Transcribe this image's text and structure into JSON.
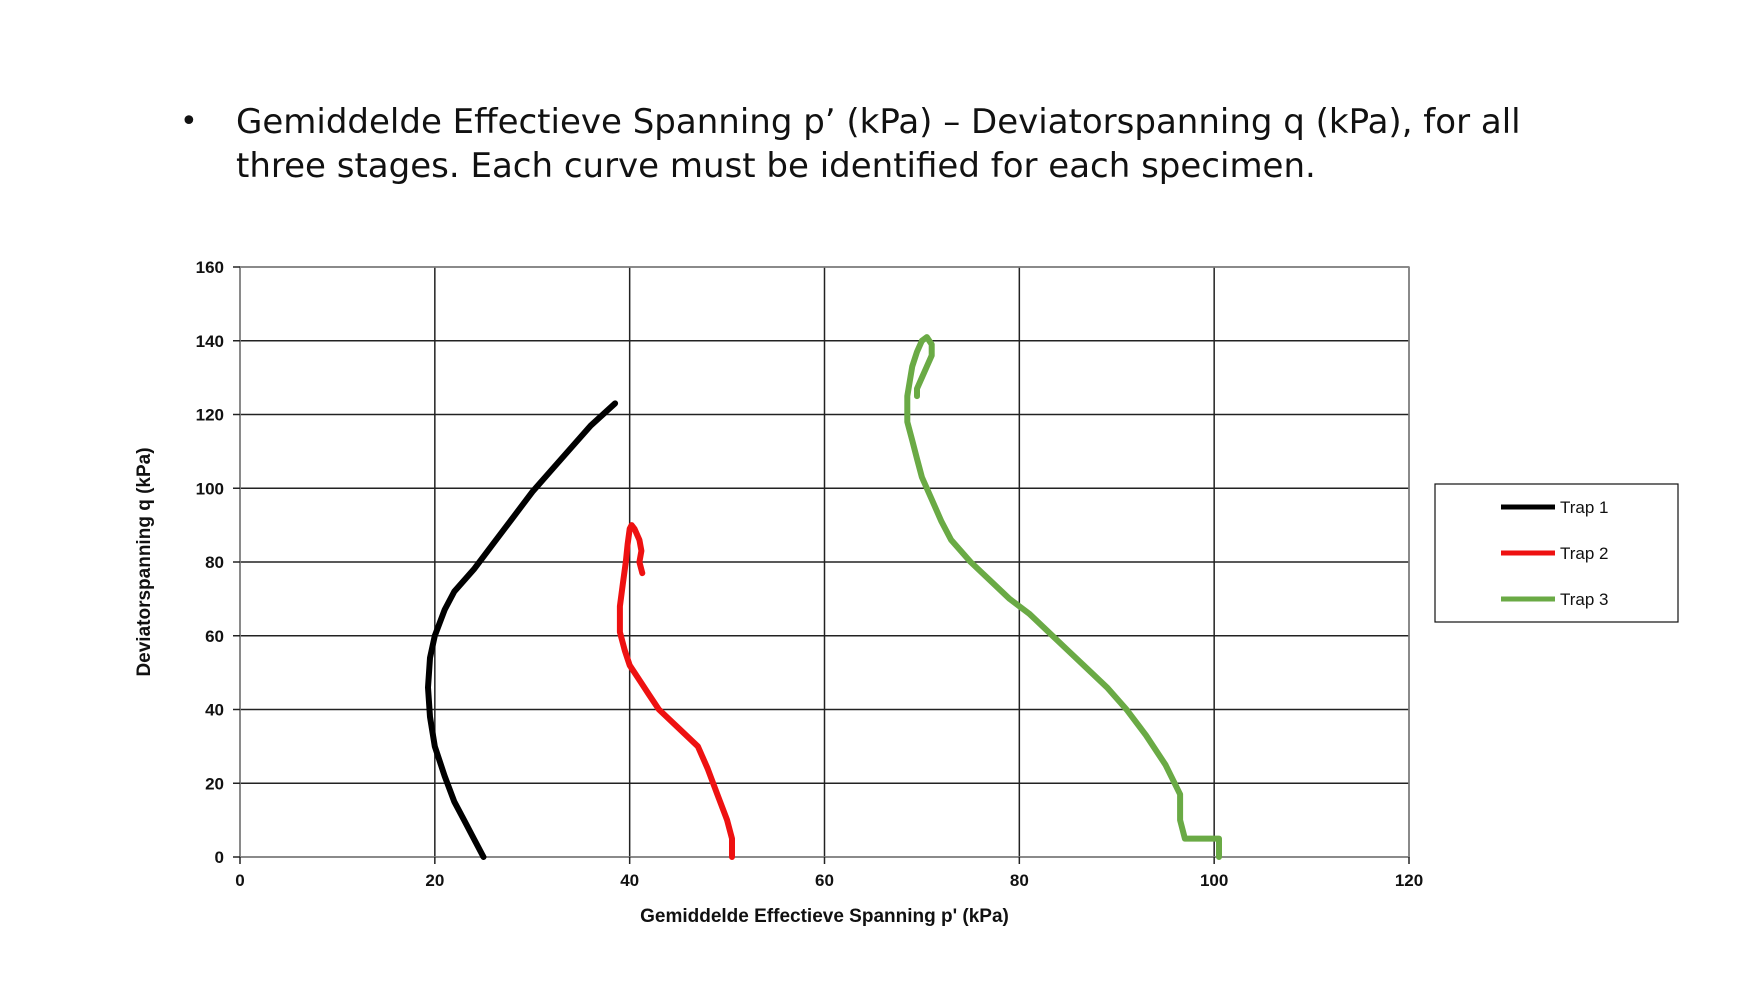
{
  "slide": {
    "bullet": "•",
    "text": "Gemiddelde Effectieve Spanning p’ (kPa) – Deviatorspanning q (kPa), for all three stages. Each curve must be identified for each specimen."
  },
  "chart_data": {
    "type": "line",
    "xlabel": "Gemiddelde Effectieve Spanning p' (kPa)",
    "ylabel": "Deviatorspanning q (kPa)",
    "xlim": [
      0,
      120
    ],
    "ylim": [
      0,
      160
    ],
    "xticks": [
      0,
      20,
      40,
      60,
      80,
      100,
      120
    ],
    "yticks": [
      0,
      20,
      40,
      60,
      80,
      100,
      120,
      140,
      160
    ],
    "grid": true,
    "legend_position": "right",
    "series": [
      {
        "name": "Trap 1",
        "color": "#000000",
        "x": [
          25,
          24,
          23,
          22,
          21,
          20,
          19.5,
          19.3,
          19.5,
          20,
          21,
          22,
          24,
          26,
          28,
          30,
          32,
          34,
          36,
          38.5
        ],
        "y": [
          0,
          5,
          10,
          15,
          22,
          30,
          38,
          46,
          54,
          60,
          67,
          72,
          78,
          85,
          92,
          99,
          105,
          111,
          117,
          123
        ]
      },
      {
        "name": "Trap 2",
        "color": "#ee1111",
        "x": [
          50.5,
          50.5,
          50,
          49,
          48,
          47,
          45,
          43,
          42,
          41,
          40,
          39.5,
          39,
          39,
          39.3,
          39.6,
          39.8,
          40,
          40.2,
          40.5,
          41,
          41.2,
          41,
          41.3
        ],
        "y": [
          0,
          5,
          10,
          17,
          24,
          30,
          35,
          40,
          44,
          48,
          52,
          56,
          61,
          68,
          74,
          80,
          85,
          89,
          90,
          89,
          86,
          83,
          80,
          77
        ]
      },
      {
        "name": "Trap 3",
        "color": "#6aaa45",
        "x": [
          100.5,
          100.5,
          97,
          96.5,
          96.5,
          95,
          93,
          91,
          89,
          87,
          85,
          83,
          81,
          79,
          77,
          75,
          73,
          72,
          71,
          70,
          69.5,
          69,
          68.5,
          68.5,
          69,
          69.5,
          70,
          70.5,
          71,
          71,
          70.5,
          70,
          69.5,
          69.5
        ],
        "y": [
          0,
          5,
          5,
          10,
          17,
          25,
          33,
          40,
          46,
          51,
          56,
          61,
          66,
          70,
          75,
          80,
          86,
          91,
          97,
          103,
          108,
          113,
          118,
          125,
          133,
          137,
          140,
          141,
          139,
          136,
          133,
          130,
          127,
          125
        ]
      }
    ]
  }
}
